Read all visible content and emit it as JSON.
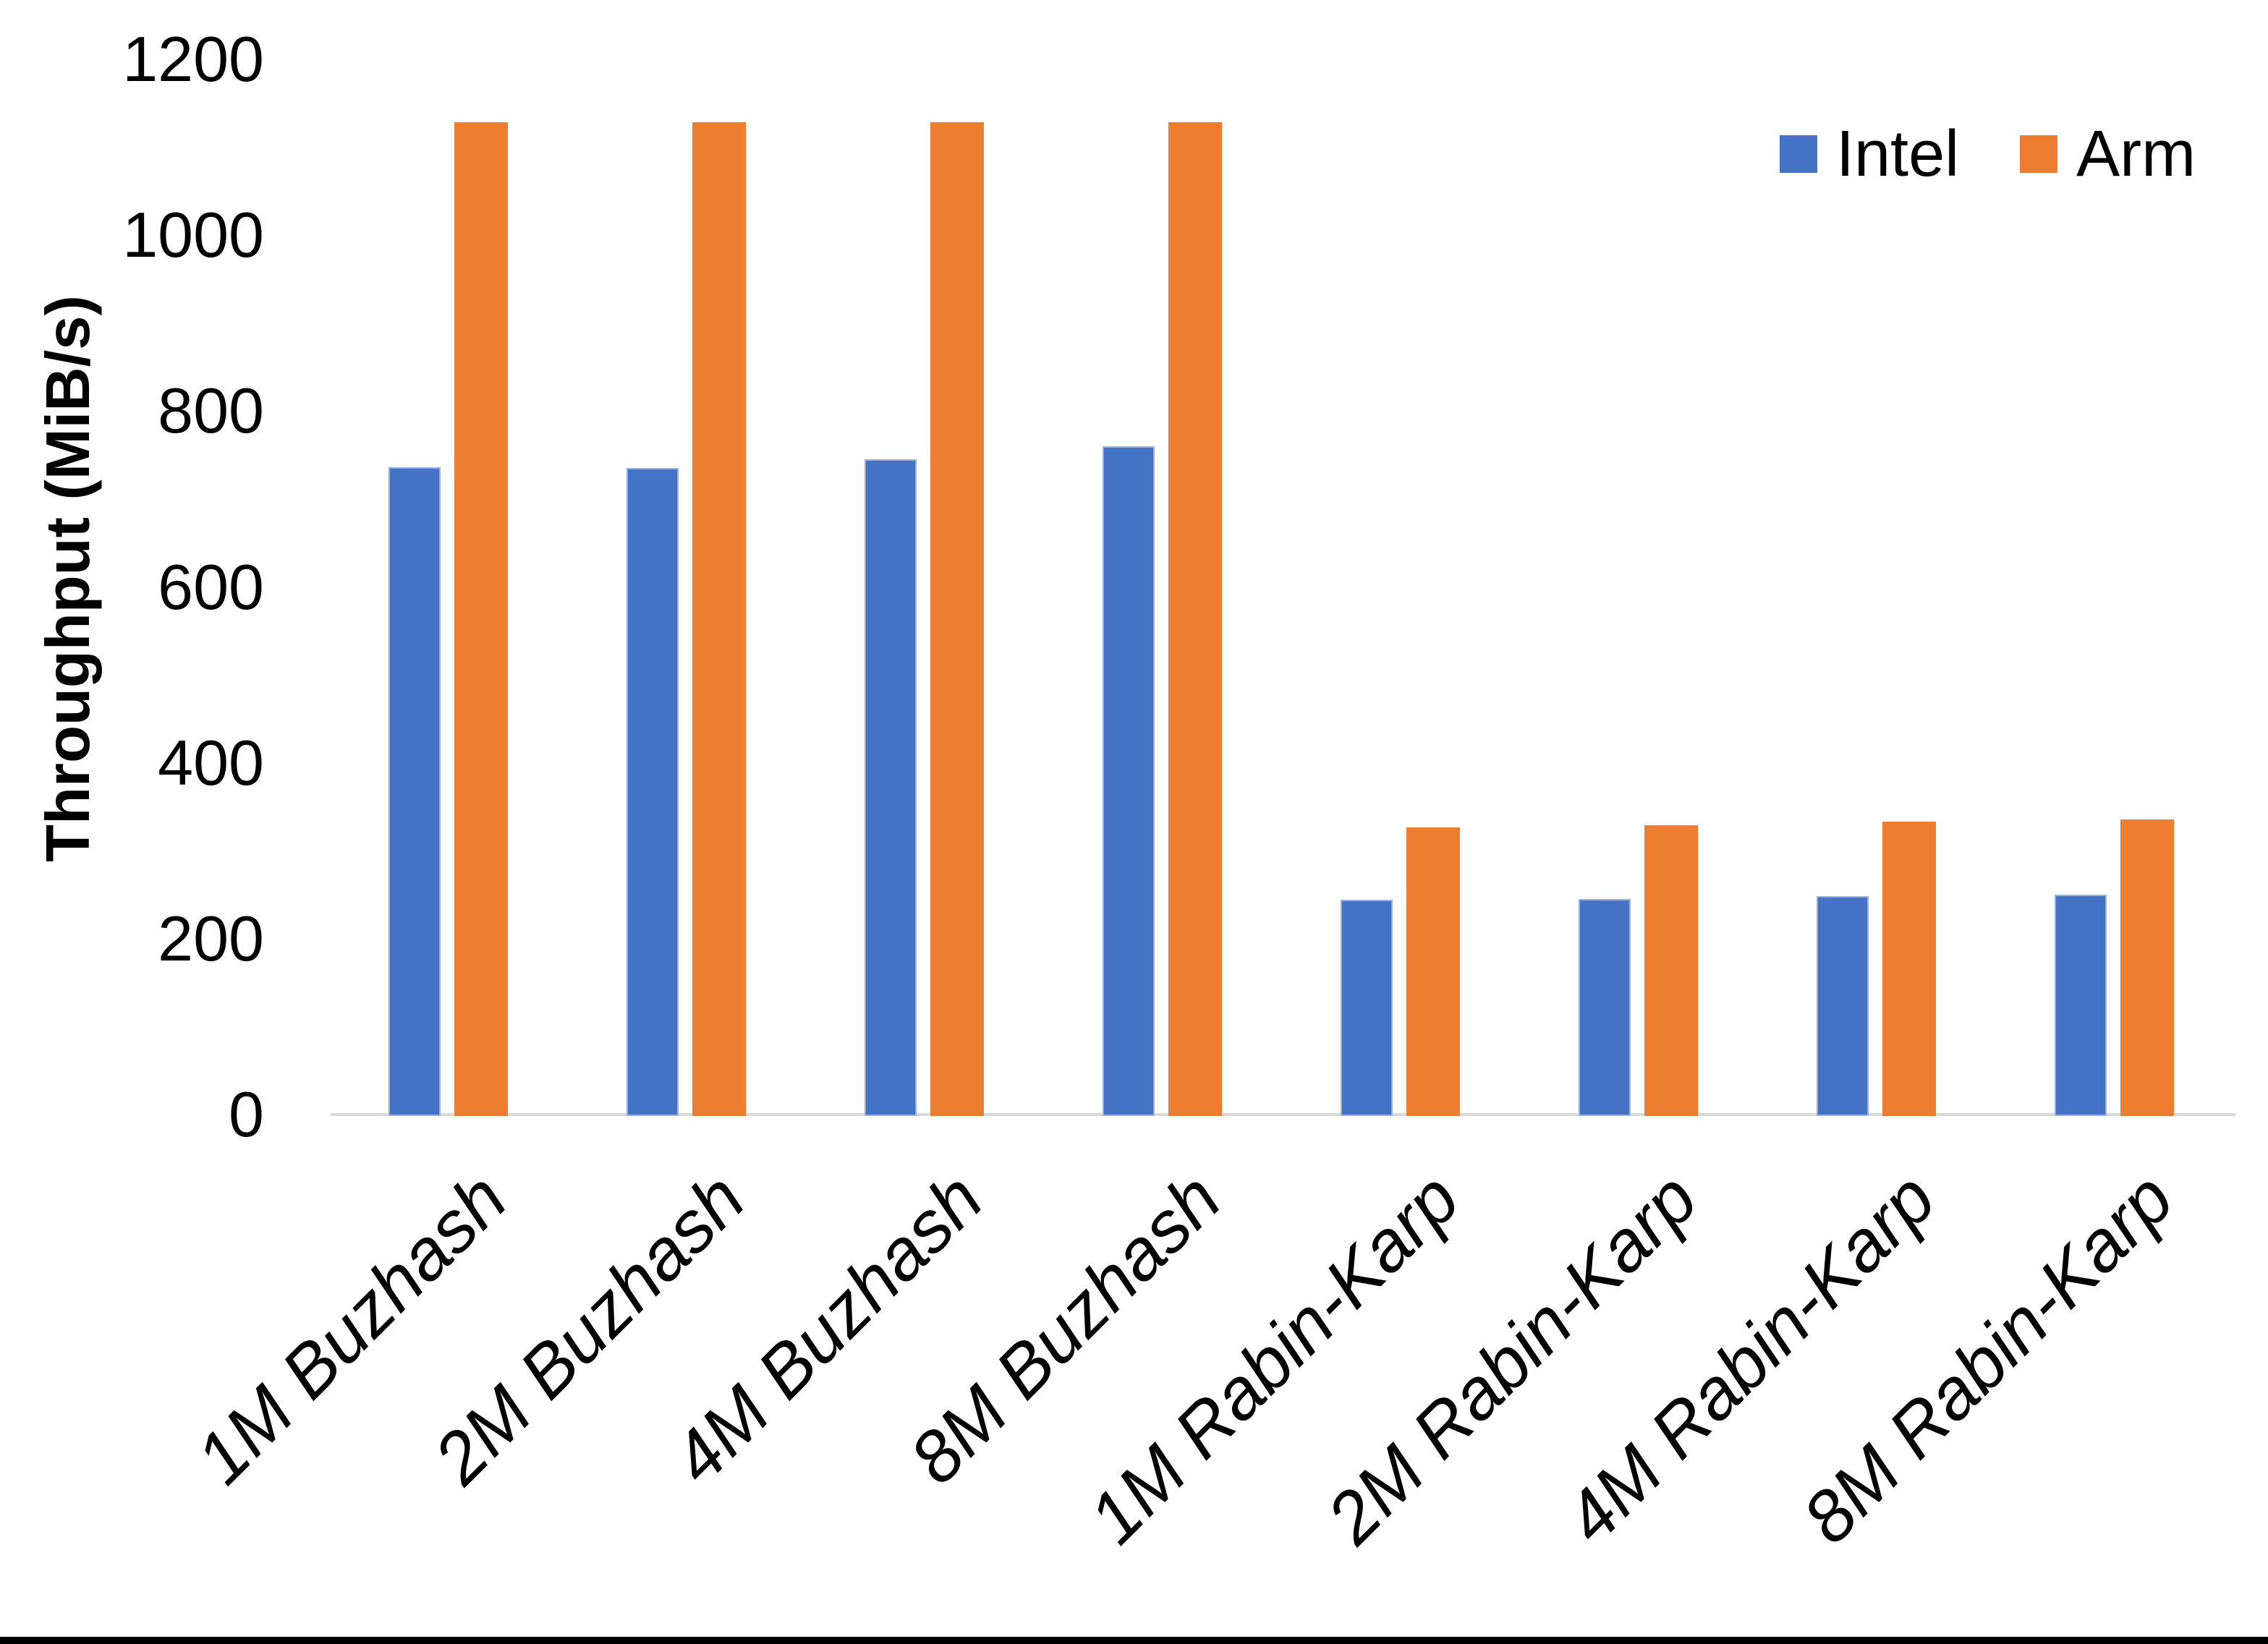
{
  "chart_data": {
    "type": "bar",
    "categories": [
      "1M Buzhash",
      "2M Buzhash",
      "4M Buzhash",
      "8M Buzhash",
      "1M Rabin-Karp",
      "2M Rabin-Karp",
      "4M Rabin-Karp",
      "8M Rabin-Karp"
    ],
    "series": [
      {
        "name": "Intel",
        "color": "#4472C4",
        "values": [
          738,
          737,
          747,
          762,
          246,
          247,
          250,
          252
        ]
      },
      {
        "name": "Arm",
        "color": "#ED7D31",
        "values": [
          1130,
          1130,
          1130,
          1130,
          328,
          331,
          335,
          337
        ]
      }
    ],
    "title": "",
    "xlabel": "",
    "ylabel": "Throughput (MiB/s)",
    "ylim": [
      0,
      1200
    ],
    "yticks": [
      0,
      200,
      400,
      600,
      800,
      1000,
      1200
    ],
    "grid": false,
    "legend_position": "top-right",
    "axis_line_color": "#d9d9d9",
    "text_color": "#000000",
    "background_color": "#ffffff",
    "bottom_border_color": "#000000"
  }
}
